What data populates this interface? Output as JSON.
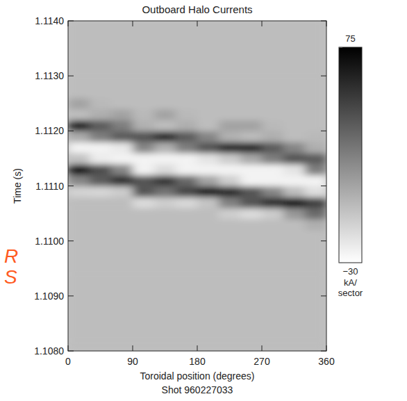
{
  "chart_data": {
    "type": "heatmap",
    "title": "Outboard Halo Currents",
    "subtitle": "Shot 960227033",
    "x_label": "Toroidal position (degrees)",
    "y_label": "Time (s)",
    "annotations": [
      "R",
      "S"
    ],
    "xlim": [
      0,
      360
    ],
    "xticks": [
      0,
      90,
      180,
      270,
      360
    ],
    "ylim": [
      1.108,
      1.114
    ],
    "yticks": [
      {
        "value": 1.108,
        "label": "1.1080"
      },
      {
        "value": 1.109,
        "label": "1.1090"
      },
      {
        "value": 1.11,
        "label": "1.1100"
      },
      {
        "value": 1.111,
        "label": "1.1110"
      },
      {
        "value": 1.112,
        "label": "1.1120"
      },
      {
        "value": 1.113,
        "label": "1.1130"
      },
      {
        "value": 1.114,
        "label": "1.1140"
      }
    ],
    "grid": false,
    "x": [
      15,
      45,
      75,
      105,
      135,
      165,
      195,
      225,
      255,
      285,
      315,
      345
    ],
    "y": [
      1.1081,
      1.1083,
      1.1085,
      1.1087,
      1.1089,
      1.1091,
      1.1093,
      1.1095,
      1.1097,
      1.1099,
      1.1101,
      1.1103,
      1.1105,
      1.1107,
      1.1109,
      1.1111,
      1.1113,
      1.1115,
      1.1117,
      1.1119,
      1.1121,
      1.1123,
      1.1125,
      1.1127,
      1.1129,
      1.1131,
      1.1133,
      1.1135,
      1.1137,
      1.1139
    ],
    "values": [
      [
        -3,
        -3,
        -3,
        -3,
        -3,
        -3,
        -3,
        -3,
        -3,
        -3,
        -3,
        -3
      ],
      [
        -3,
        -3,
        -3,
        -3,
        -3,
        -3,
        -3,
        -3,
        -3,
        -3,
        -3,
        -3
      ],
      [
        -3,
        -3,
        -3,
        -3,
        -3,
        -3,
        -3,
        -3,
        -3,
        -3,
        -3,
        -3
      ],
      [
        -3,
        -3,
        -3,
        -3,
        -3,
        -3,
        -3,
        -3,
        -3,
        -3,
        -3,
        -3
      ],
      [
        -3,
        -3,
        -3,
        -3,
        -3,
        -3,
        -3,
        -3,
        -3,
        -3,
        -3,
        -3
      ],
      [
        -3,
        -3,
        -3,
        -3,
        -3,
        -3,
        -3,
        -3,
        -3,
        -3,
        -3,
        -3
      ],
      [
        -3,
        -3,
        -3,
        -3,
        -3,
        -3,
        -3,
        -3,
        -3,
        -3,
        -3,
        -3
      ],
      [
        -3,
        -3,
        -3,
        -3,
        -3,
        -3,
        -3,
        -3,
        -3,
        -3,
        -3,
        -3
      ],
      [
        -3,
        -3,
        -3,
        -3,
        -3,
        -3,
        -3,
        -3,
        -3,
        -3,
        -3,
        -3
      ],
      [
        -3,
        -3,
        -3,
        -3,
        -3,
        -3,
        -3,
        -3,
        -3,
        -3,
        -3,
        -3
      ],
      [
        -3,
        -3,
        -3,
        -3,
        -3,
        -3,
        -3,
        -3,
        -3,
        -3,
        -3,
        -3
      ],
      [
        -3,
        -3,
        -3,
        -3,
        -3,
        -3,
        -3,
        -3,
        -3,
        -3,
        -3,
        3
      ],
      [
        -3,
        -3,
        -3,
        -3,
        -3,
        -3,
        -3,
        -10,
        -15,
        -9,
        13,
        31
      ],
      [
        -3,
        -3,
        -3,
        -15,
        -10,
        -14,
        -6,
        22,
        40,
        55,
        67,
        49
      ],
      [
        -12,
        -13,
        -9,
        40,
        28,
        46,
        64,
        58,
        40,
        20,
        -3,
        -17
      ],
      [
        20,
        37,
        55,
        40,
        52,
        32,
        8,
        -10,
        -25,
        -25,
        -25,
        -25
      ],
      [
        65,
        43,
        20,
        -25,
        -15,
        -25,
        -25,
        -25,
        -25,
        -25,
        -19,
        23
      ],
      [
        -5,
        -22,
        -25,
        -25,
        -25,
        -25,
        -19,
        -9,
        6,
        23,
        40,
        37
      ],
      [
        -25,
        -25,
        -21,
        20,
        2,
        23,
        40,
        58,
        58,
        37,
        20,
        3
      ],
      [
        5,
        23,
        37,
        40,
        58,
        37,
        20,
        2,
        -2,
        3,
        -3,
        -1
      ],
      [
        62,
        37,
        23,
        2,
        -3,
        3,
        -3,
        8,
        8,
        -1,
        -3,
        -3
      ],
      [
        -3,
        3,
        8,
        -1,
        8,
        -1,
        -3,
        -3,
        -3,
        -3,
        -3,
        -3
      ],
      [
        8,
        -1,
        -3,
        -3,
        -3,
        -3,
        -3,
        -3,
        -3,
        -3,
        -3,
        -3
      ],
      [
        -3,
        -3,
        -3,
        -3,
        -3,
        -3,
        -3,
        -3,
        -3,
        -3,
        -3,
        -3
      ],
      [
        -3,
        -3,
        -3,
        -3,
        -3,
        -3,
        -3,
        -3,
        -3,
        -3,
        -3,
        -3
      ],
      [
        -3,
        -3,
        -3,
        -3,
        -3,
        -3,
        -3,
        -3,
        -3,
        -3,
        -3,
        -3
      ],
      [
        -3,
        -3,
        -3,
        -3,
        -3,
        -3,
        -3,
        -3,
        -3,
        -3,
        -3,
        -3
      ],
      [
        -3,
        -3,
        -3,
        -3,
        -3,
        -3,
        -3,
        -3,
        -3,
        -3,
        -3,
        -3
      ],
      [
        -3,
        -3,
        -3,
        -3,
        -3,
        -3,
        -3,
        -3,
        -3,
        -3,
        -3,
        -3
      ],
      [
        -3,
        -3,
        -3,
        -3,
        -3,
        -3,
        -3,
        -3,
        -3,
        -3,
        -3,
        -3
      ]
    ],
    "colorbar": {
      "range": [
        -30,
        75
      ],
      "ticks": [
        75,
        {
          "value": -30,
          "label": "−30"
        }
      ],
      "label": "kA/ sector"
    }
  }
}
